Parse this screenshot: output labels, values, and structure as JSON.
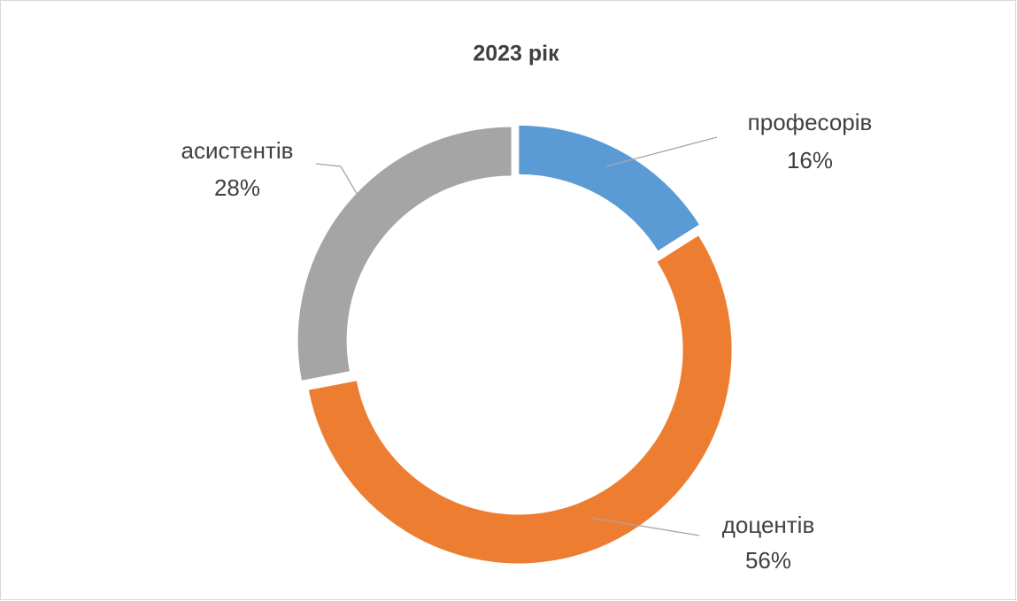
{
  "chart_data": {
    "type": "donut",
    "title": "2023 рік",
    "categories": [
      "професорів",
      "доцентів",
      "асистентів"
    ],
    "values": [
      16,
      56,
      28
    ],
    "value_labels": [
      "16%",
      "56%",
      "28%"
    ],
    "colors": [
      "#5b9bd5",
      "#ed7d31",
      "#a5a5a5"
    ]
  }
}
